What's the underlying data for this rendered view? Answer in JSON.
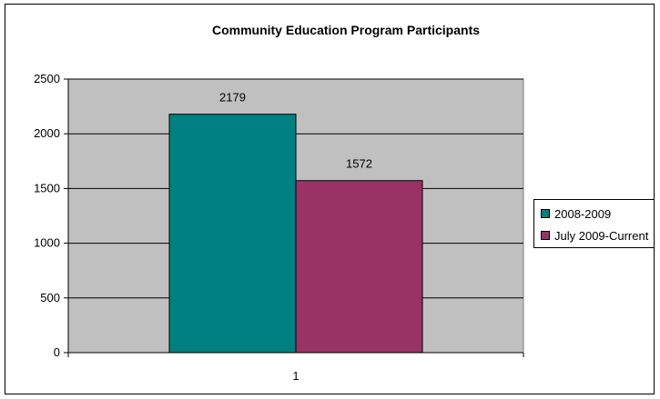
{
  "chart_data": {
    "type": "bar",
    "title": "Community Education Program Participants",
    "categories": [
      "1"
    ],
    "series": [
      {
        "name": "2008-2009",
        "values": [
          2179
        ],
        "color": "#008080"
      },
      {
        "name": "July 2009-Current",
        "values": [
          1572
        ],
        "color": "#993366"
      }
    ],
    "ylim": [
      0,
      2500
    ],
    "yticks": [
      0,
      500,
      1000,
      1500,
      2000,
      2500
    ],
    "grid": true,
    "plot_background": "#c0c0c0",
    "legend_position": "right",
    "data_labels": [
      "2179",
      "1572"
    ],
    "xlabel": "",
    "ylabel": ""
  }
}
